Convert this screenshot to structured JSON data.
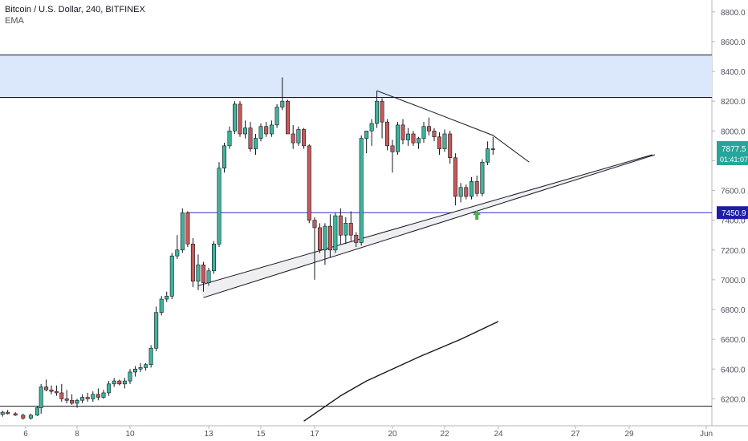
{
  "header": {
    "title": "Bitcoin / U.S. Dollar, 240, BITFINEX",
    "indicator": "EMA"
  },
  "colors": {
    "up": "#26a69a",
    "down": "#ef5350",
    "up_fill": "#3fb39b",
    "down_fill": "#c75a5a",
    "zone": "#dbe7fb",
    "support_line": "#2b2bcc",
    "accent_arrow": "#4caf50",
    "axis_text": "#50535e",
    "price_label_bg": "#26a69a",
    "level_label_bg": "#1e1ea8"
  },
  "price_labels": {
    "current_price": "7877.5",
    "countdown": "01:41:07",
    "support_level": "7450.9"
  },
  "chart_data": {
    "type": "candlestick",
    "title": "Bitcoin / U.S. Dollar, 240, BITFINEX",
    "y_axis": {
      "ticks": [
        "8800.0",
        "8600.0",
        "8400.0",
        "8200.0",
        "8000.0",
        "7800.0",
        "7600.0",
        "7400.0",
        "7200.0",
        "7000.0",
        "6800.0",
        "6600.0",
        "6400.0",
        "6200.0"
      ],
      "ylim": [
        6050,
        8880
      ]
    },
    "x_axis": {
      "ticks": [
        "6",
        "8",
        "10",
        "13",
        "15",
        "17",
        "20",
        "22",
        "24",
        "27",
        "29",
        "Jun"
      ],
      "tick_days": [
        6,
        8,
        10,
        13,
        15,
        17,
        20,
        22,
        24,
        27,
        29,
        32
      ]
    },
    "resistance_zone": [
      8225,
      8510
    ],
    "horizontal_levels": [
      7450.9,
      6150
    ],
    "ascending_channel": {
      "lower": [
        [
          12.8,
          6880
        ],
        [
          30.0,
          7840
        ]
      ],
      "upper": [
        [
          12.6,
          6960
        ],
        [
          29.9,
          7840
        ]
      ]
    },
    "descending_trendline": [
      [
        19.4,
        8270
      ],
      [
        21.5,
        8130
      ],
      [
        23.8,
        7970
      ],
      [
        25.2,
        7790
      ]
    ],
    "ema_curve": [
      [
        16.6,
        6050
      ],
      [
        18.0,
        6220
      ],
      [
        19.0,
        6320
      ],
      [
        21.0,
        6480
      ],
      [
        22.6,
        6600
      ],
      [
        24.0,
        6720
      ]
    ],
    "arrow": {
      "day": 23.2,
      "price": 7430
    },
    "candles": [
      [
        5.1,
        6095,
        6120,
        6080,
        6110
      ],
      [
        5.3,
        6110,
        6125,
        6095,
        6100
      ],
      [
        5.6,
        6100,
        6110,
        6085,
        6090
      ],
      [
        5.9,
        6090,
        6100,
        6060,
        6070
      ],
      [
        6.2,
        6070,
        6100,
        6060,
        6090
      ],
      [
        6.45,
        6090,
        6150,
        6085,
        6140
      ],
      [
        6.6,
        6140,
        6300,
        6100,
        6280
      ],
      [
        6.8,
        6280,
        6330,
        6250,
        6260
      ],
      [
        7.0,
        6260,
        6290,
        6230,
        6250
      ],
      [
        7.2,
        6250,
        6290,
        6220,
        6240
      ],
      [
        7.4,
        6240,
        6300,
        6180,
        6200
      ],
      [
        7.6,
        6200,
        6260,
        6170,
        6190
      ],
      [
        7.8,
        6190,
        6230,
        6160,
        6170
      ],
      [
        8.0,
        6170,
        6200,
        6140,
        6190
      ],
      [
        8.2,
        6190,
        6230,
        6170,
        6210
      ],
      [
        8.4,
        6210,
        6240,
        6180,
        6200
      ],
      [
        8.6,
        6200,
        6250,
        6180,
        6230
      ],
      [
        8.8,
        6230,
        6270,
        6190,
        6210
      ],
      [
        9.0,
        6210,
        6260,
        6200,
        6240
      ],
      [
        9.2,
        6240,
        6320,
        6220,
        6300
      ],
      [
        9.4,
        6300,
        6340,
        6280,
        6320
      ],
      [
        9.6,
        6320,
        6330,
        6290,
        6300
      ],
      [
        9.8,
        6300,
        6340,
        6270,
        6320
      ],
      [
        10.0,
        6320,
        6400,
        6300,
        6380
      ],
      [
        10.2,
        6380,
        6420,
        6350,
        6400
      ],
      [
        10.4,
        6400,
        6440,
        6380,
        6410
      ],
      [
        10.6,
        6410,
        6440,
        6390,
        6430
      ],
      [
        10.8,
        6430,
        6560,
        6410,
        6540
      ],
      [
        11.0,
        6540,
        6820,
        6520,
        6780
      ],
      [
        11.2,
        6780,
        6890,
        6760,
        6870
      ],
      [
        11.4,
        6870,
        6920,
        6850,
        6890
      ],
      [
        11.6,
        6890,
        7180,
        6870,
        7160
      ],
      [
        11.8,
        7160,
        7300,
        7140,
        7200
      ],
      [
        12.0,
        7200,
        7480,
        7180,
        7450
      ],
      [
        12.2,
        7450,
        7460,
        7220,
        7240
      ],
      [
        12.4,
        7240,
        7280,
        6950,
        6990
      ],
      [
        12.6,
        6990,
        7170,
        6930,
        7100
      ],
      [
        12.8,
        7100,
        7120,
        6920,
        6980
      ],
      [
        13.0,
        6980,
        7080,
        6960,
        7060
      ],
      [
        13.2,
        7060,
        7260,
        7040,
        7240
      ],
      [
        13.4,
        7240,
        7790,
        7220,
        7750
      ],
      [
        13.6,
        7750,
        7920,
        7720,
        7900
      ],
      [
        13.8,
        7900,
        8030,
        7880,
        8000
      ],
      [
        14.0,
        8000,
        8200,
        7980,
        8180
      ],
      [
        14.2,
        8180,
        8200,
        7960,
        7980
      ],
      [
        14.4,
        7980,
        8070,
        7950,
        8020
      ],
      [
        14.6,
        8020,
        8060,
        7860,
        7880
      ],
      [
        14.8,
        7880,
        7980,
        7840,
        7950
      ],
      [
        15.0,
        7950,
        8050,
        7930,
        8030
      ],
      [
        15.2,
        8030,
        8060,
        7960,
        7980
      ],
      [
        15.4,
        7980,
        8070,
        7960,
        8040
      ],
      [
        15.6,
        8040,
        8180,
        8020,
        8160
      ],
      [
        15.8,
        8160,
        8360,
        8140,
        8200
      ],
      [
        16.0,
        8200,
        8210,
        8000,
        7980
      ],
      [
        16.2,
        7980,
        8040,
        7880,
        7920
      ],
      [
        16.4,
        7920,
        8030,
        7900,
        8010
      ],
      [
        16.6,
        8010,
        8020,
        7880,
        7900
      ],
      [
        16.8,
        7900,
        7910,
        7380,
        7400
      ],
      [
        17.0,
        7400,
        7420,
        7000,
        7350
      ],
      [
        17.2,
        7350,
        7380,
        7180,
        7200
      ],
      [
        17.4,
        7200,
        7380,
        7100,
        7360
      ],
      [
        17.6,
        7360,
        7440,
        7150,
        7200
      ],
      [
        17.8,
        7200,
        7450,
        7180,
        7430
      ],
      [
        18.0,
        7430,
        7480,
        7240,
        7300
      ],
      [
        18.2,
        7300,
        7420,
        7240,
        7380
      ],
      [
        18.4,
        7380,
        7460,
        7260,
        7300
      ],
      [
        18.6,
        7300,
        7320,
        7220,
        7250
      ],
      [
        18.8,
        7250,
        7970,
        7230,
        7950
      ],
      [
        19.0,
        7950,
        8000,
        7850,
        8000
      ],
      [
        19.2,
        8000,
        8080,
        7900,
        8050
      ],
      [
        19.4,
        8050,
        8270,
        8020,
        8200
      ],
      [
        19.6,
        8200,
        8220,
        7950,
        8060
      ],
      [
        19.8,
        8060,
        8080,
        7870,
        7900
      ],
      [
        20.0,
        7900,
        7940,
        7720,
        7860
      ],
      [
        20.2,
        7860,
        8060,
        7840,
        8040
      ],
      [
        20.4,
        8040,
        8080,
        7910,
        7940
      ],
      [
        20.6,
        7940,
        8020,
        7900,
        7980
      ],
      [
        20.8,
        7980,
        8000,
        7900,
        7920
      ],
      [
        21.0,
        7920,
        7960,
        7880,
        7950
      ],
      [
        21.2,
        7950,
        8060,
        7920,
        8030
      ],
      [
        21.4,
        8030,
        8090,
        7970,
        8000
      ],
      [
        21.6,
        8000,
        8020,
        7930,
        7960
      ],
      [
        21.8,
        7960,
        7990,
        7840,
        7880
      ],
      [
        22.0,
        7880,
        8010,
        7860,
        7980
      ],
      [
        22.2,
        7980,
        8000,
        7780,
        7820
      ],
      [
        22.4,
        7820,
        7850,
        7500,
        7560
      ],
      [
        22.6,
        7560,
        7650,
        7520,
        7620
      ],
      [
        22.8,
        7620,
        7640,
        7540,
        7560
      ],
      [
        23.0,
        7560,
        7690,
        7540,
        7660
      ],
      [
        23.2,
        7660,
        7700,
        7560,
        7580
      ],
      [
        23.4,
        7580,
        7810,
        7560,
        7790
      ],
      [
        23.6,
        7790,
        7930,
        7770,
        7880
      ],
      [
        23.8,
        7880,
        7960,
        7840,
        7877.5
      ]
    ]
  }
}
